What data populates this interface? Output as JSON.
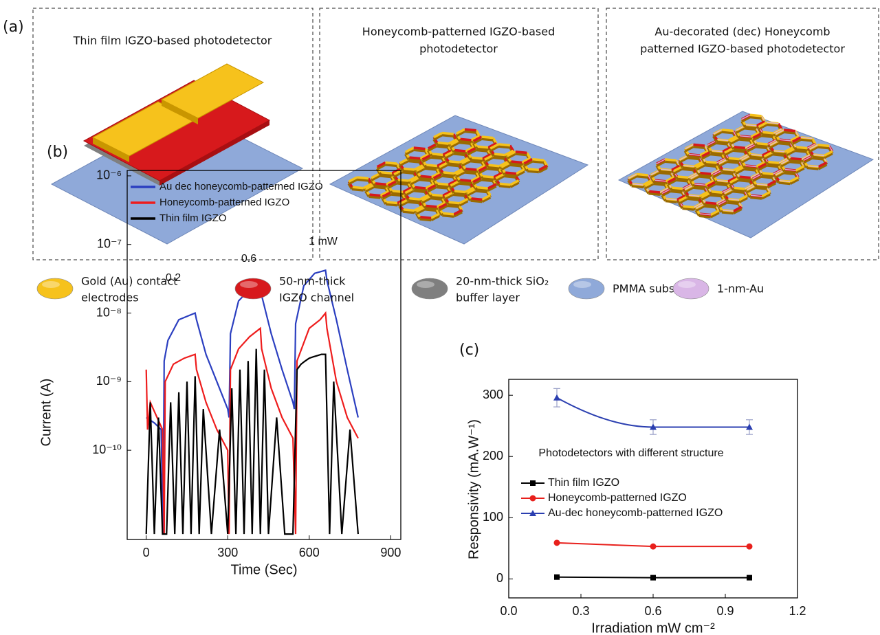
{
  "panel_a": {
    "label": "(a)",
    "boxes": [
      {
        "title_lines": [
          "Thin film IGZO-based photodetector"
        ]
      },
      {
        "title_lines": [
          "Honeycomb-patterned IGZO-based",
          "photodetector"
        ]
      },
      {
        "title_lines": [
          "Au-decorated (dec) Honeycomb",
          "patterned IGZO-based photodetector"
        ]
      }
    ],
    "legend": [
      {
        "lines": [
          "Gold (Au) contact",
          "electrodes"
        ],
        "color": "#f6c21c"
      },
      {
        "lines": [
          "50-nm-thick",
          "IGZO channel"
        ],
        "color": "#d7191c"
      },
      {
        "lines": [
          "20-nm-thick SiO₂",
          "buffer layer"
        ],
        "color": "#7f7f7f"
      },
      {
        "lines": [
          "PMMA substrate"
        ],
        "color": "#8fa9d9"
      },
      {
        "lines": [
          "1-nm-Au"
        ],
        "color": "#d9b6e6"
      }
    ]
  },
  "chart_data": [
    {
      "type": "line",
      "panel_label": "(b)",
      "x_label": "Time (Sec)",
      "y_label": "Current (A)",
      "yscale": "log",
      "xlim": [
        -70,
        937
      ],
      "xticks": [
        0,
        300,
        600,
        900
      ],
      "ylim": [
        5e-12,
        1.2e-06
      ],
      "yticks": [
        {
          "value": 1e-06,
          "label": "10⁻⁶"
        },
        {
          "value": 1e-07,
          "label": "10⁻⁷"
        },
        {
          "value": 1e-08,
          "label": "10⁻⁸"
        },
        {
          "value": 1e-09,
          "label": "10⁻⁹"
        },
        {
          "value": 1e-10,
          "label": "10⁻¹⁰"
        }
      ],
      "annotations": [
        "0.2",
        "0.6",
        "1 mW"
      ],
      "series": [
        {
          "name": "Au dec honeycomb-patterned IGZO",
          "color": "#2b3fc0",
          "x": [
            0,
            30,
            55,
            62,
            66,
            80,
            120,
            180,
            185,
            220,
            260,
            300,
            305,
            310,
            340,
            380,
            420,
            425,
            460,
            500,
            540,
            545,
            550,
            580,
            620,
            660,
            665,
            700,
            740,
            780
          ],
          "values": [
            3e-10,
            2.5e-10,
            2e-10,
            6e-12,
            2e-09,
            4e-09,
            8e-09,
            1e-08,
            8e-09,
            2.5e-09,
            1e-09,
            4e-10,
            3e-10,
            5e-09,
            1.5e-08,
            2.2e-08,
            2.5e-08,
            1.8e-08,
            5e-09,
            1.5e-09,
            5e-10,
            4e-10,
            7e-09,
            2.5e-08,
            3.8e-08,
            4.2e-08,
            3e-08,
            8e-09,
            1.5e-09,
            3e-10
          ]
        },
        {
          "name": "Honeycomb-patterned IGZO",
          "color": "#ee1c1c",
          "x": [
            0,
            5,
            15,
            40,
            60,
            66,
            70,
            100,
            140,
            180,
            185,
            220,
            260,
            300,
            305,
            310,
            340,
            380,
            420,
            425,
            460,
            500,
            540,
            550,
            555,
            600,
            640,
            660,
            665,
            700,
            740,
            780
          ],
          "values": [
            1.5e-09,
            2e-10,
            5e-10,
            3e-10,
            2e-10,
            6e-12,
            1e-09,
            1.8e-09,
            2.2e-09,
            2.5e-09,
            1.5e-09,
            5e-10,
            2e-10,
            1e-10,
            6e-12,
            1.5e-09,
            3e-09,
            4.5e-09,
            6e-09,
            3e-09,
            8e-10,
            3e-10,
            1.5e-10,
            6e-12,
            2e-09,
            6e-09,
            8e-09,
            1e-08,
            6e-09,
            1e-09,
            3e-10,
            1.5e-10
          ]
        },
        {
          "name": "Thin film IGZO",
          "color": "#000000",
          "x": [
            0,
            15,
            30,
            45,
            60,
            75,
            90,
            105,
            120,
            135,
            150,
            165,
            180,
            195,
            210,
            240,
            270,
            300,
            315,
            330,
            345,
            360,
            375,
            390,
            405,
            420,
            435,
            450,
            480,
            510,
            540,
            555,
            570,
            585,
            600,
            615,
            630,
            645,
            660,
            675,
            690,
            720,
            750,
            780
          ],
          "values": [
            6e-12,
            5e-10,
            6e-12,
            3e-10,
            6e-12,
            6e-12,
            5e-10,
            6e-12,
            7e-10,
            6e-12,
            1e-09,
            6e-12,
            1.2e-09,
            6e-12,
            4e-10,
            6e-12,
            2e-10,
            6e-12,
            8e-10,
            6e-12,
            1.5e-09,
            6e-12,
            2e-09,
            6e-12,
            3e-09,
            6e-12,
            1.5e-09,
            6e-12,
            3e-10,
            6e-12,
            6e-12,
            1.5e-09,
            1.8e-09,
            2e-09,
            2.2e-09,
            2.3e-09,
            2.4e-09,
            2.5e-09,
            2.5e-09,
            6e-12,
            1e-09,
            6e-12,
            2e-10,
            6e-12
          ]
        }
      ]
    },
    {
      "type": "scatter",
      "panel_label": "(c)",
      "x_label": "Irradiation mW cm⁻²",
      "y_label": "Responsivity (mA.W⁻¹)",
      "annotation": "Photodetectors with different structure",
      "xlim": [
        0,
        1.2
      ],
      "xticks": [
        {
          "value": 0,
          "label": "0.0"
        },
        0.3,
        0.6,
        0.9,
        1.2
      ],
      "ylim": [
        -31,
        326
      ],
      "yticks": [
        0,
        100,
        200,
        300
      ],
      "series": [
        {
          "name": "Thin film IGZO",
          "color": "#000000",
          "marker": "square",
          "x": [
            0.2,
            0.6,
            1.0
          ],
          "values": [
            3,
            2,
            2
          ]
        },
        {
          "name": "Honeycomb-patterned IGZO",
          "color": "#e8201c",
          "marker": "circle",
          "x": [
            0.2,
            0.6,
            1.0
          ],
          "values": [
            59,
            53,
            53
          ]
        },
        {
          "name": "Au-dec honeycomb-patterned IGZO",
          "color": "#2b3fb0",
          "marker": "triangle",
          "x": [
            0.2,
            0.6,
            1.0
          ],
          "values": [
            296,
            248,
            248
          ],
          "errors": [
            15,
            12,
            12
          ],
          "fit": true
        }
      ]
    }
  ]
}
